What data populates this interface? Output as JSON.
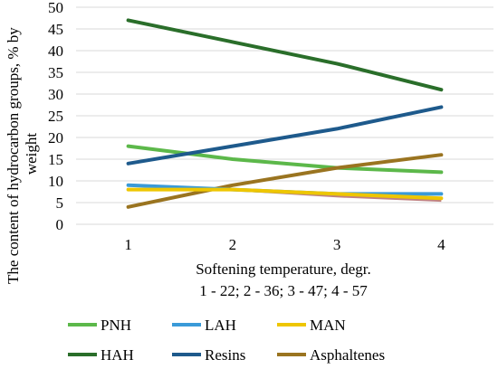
{
  "chart_data": {
    "type": "line",
    "categories": [
      "1",
      "2",
      "3",
      "4"
    ],
    "ylabel": "The content of hydrocarbon groups, % by weight",
    "ylabel_lines": [
      "The content of hydrocarbon groups, % by",
      "weight"
    ],
    "xlabel_lines": [
      "Softening temperature, degr.",
      "1 - 22; 2 - 36; 3 - 47; 4 - 57"
    ],
    "ylim": [
      0,
      50
    ],
    "yticks": [
      "0",
      "5",
      "10",
      "15",
      "20",
      "25",
      "30",
      "35",
      "40",
      "45",
      "50"
    ],
    "grid": "horizontal",
    "legend_position": "bottom",
    "series": [
      {
        "name": "PNH",
        "color": "#5cb84a",
        "values": [
          18,
          15,
          13,
          12
        ]
      },
      {
        "name": "LAH",
        "color": "#3a9ad8",
        "values": [
          9,
          8,
          7,
          7
        ]
      },
      {
        "name": "MAN",
        "color": "#eec600",
        "values": [
          8,
          8,
          7,
          6
        ]
      },
      {
        "name": "HAH",
        "color": "#2a6e2a",
        "values": [
          47,
          42,
          37,
          31
        ]
      },
      {
        "name": "Resins",
        "color": "#1e5a8c",
        "values": [
          14,
          18,
          22,
          27
        ]
      },
      {
        "name": "Asphaltenes",
        "color": "#9a7420",
        "values": [
          4,
          9,
          13,
          16
        ]
      }
    ],
    "extra_lines": [
      {
        "color": "#c08080",
        "values": [
          8,
          8,
          6.5,
          5.5
        ]
      }
    ]
  }
}
